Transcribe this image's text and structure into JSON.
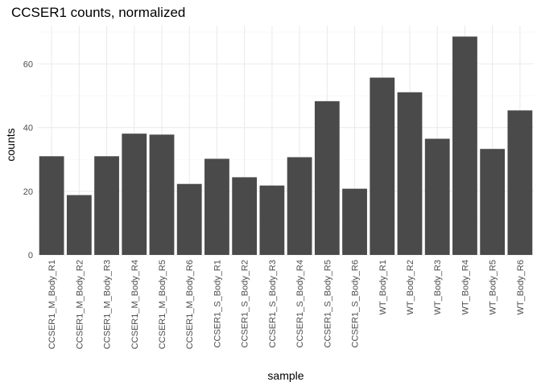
{
  "chart_data": {
    "type": "bar",
    "title": "CCSER1 counts, normalized",
    "xlabel": "sample",
    "ylabel": "counts",
    "ylim": [
      0,
      72
    ],
    "yticks": [
      0,
      20,
      40,
      60
    ],
    "grid": true,
    "categories": [
      "CCSER1_M_Body_R1",
      "CCSER1_M_Body_R2",
      "CCSER1_M_Body_R3",
      "CCSER1_M_Body_R4",
      "CCSER1_M_Body_R5",
      "CCSER1_M_Body_R6",
      "CCSER1_S_Body_R1",
      "CCSER1_S_Body_R2",
      "CCSER1_S_Body_R3",
      "CCSER1_S_Body_R4",
      "CCSER1_S_Body_R5",
      "CCSER1_S_Body_R6",
      "WT_Body_R1",
      "WT_Body_R2",
      "WT_Body_R3",
      "WT_Body_R4",
      "WT_Body_R5",
      "WT_Body_R6"
    ],
    "values": [
      31.0,
      18.8,
      31.0,
      38.1,
      37.8,
      22.3,
      30.2,
      24.4,
      21.8,
      30.7,
      48.3,
      20.8,
      55.7,
      51.1,
      36.5,
      68.6,
      33.3,
      45.4
    ],
    "colors": {
      "bar": "#4a4a4a",
      "grid_major": "#ebebeb",
      "grid_minor": "#f5f5f5"
    }
  }
}
